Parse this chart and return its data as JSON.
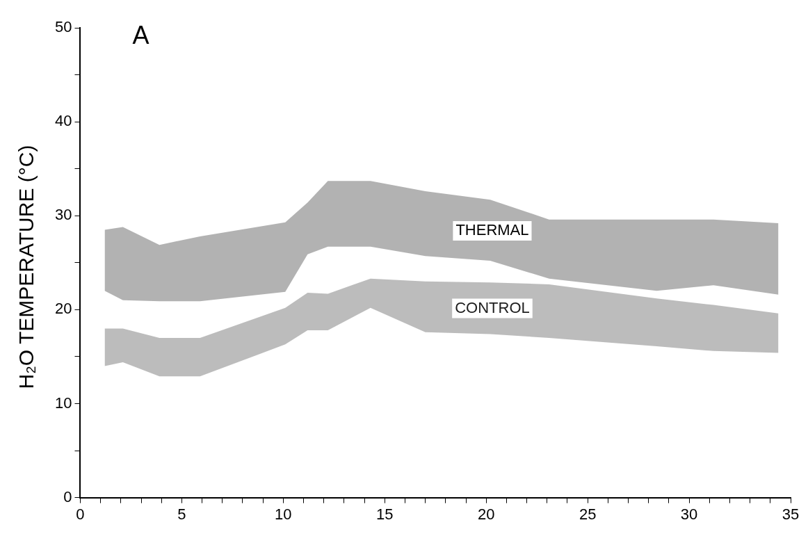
{
  "chart_data": {
    "type": "line",
    "title": "A",
    "ylabel": "H₂O TEMPERATURE (°C)",
    "x": [
      1.2,
      2.1,
      3.9,
      5.9,
      10.1,
      11.2,
      12.2,
      14.3,
      17,
      20.2,
      23.1,
      28.4,
      31.2,
      34.4
    ],
    "series": [
      {
        "name": "THERMAL",
        "color": "#000000",
        "values": [
          null,
          null,
          null,
          null,
          null,
          null,
          null,
          null,
          null,
          null,
          null,
          null,
          null,
          null
        ],
        "upper": [
          28.5,
          28.8,
          26.9,
          27.8,
          29.3,
          31.4,
          33.7,
          33.7,
          32.6,
          31.7,
          29.6,
          29.6,
          29.6,
          29.2
        ],
        "lower": [
          22,
          21,
          20.9,
          20.9,
          21.9,
          25.9,
          26.7,
          26.7,
          25.7,
          25.2,
          23.3,
          22,
          22.6,
          21.6
        ]
      },
      {
        "name": "CONTROL",
        "color": "#202020",
        "values": [
          null,
          null,
          null,
          null,
          null,
          null,
          null,
          null,
          null,
          null,
          null,
          null,
          null,
          null
        ],
        "upper": [
          18,
          18,
          17,
          17,
          20.2,
          21.8,
          21.7,
          23.3,
          23,
          22.9,
          22.7,
          21.2,
          20.5,
          19.6
        ],
        "lower": [
          14,
          14.4,
          12.9,
          12.9,
          16.3,
          17.8,
          17.8,
          20.2,
          17.6,
          17.4,
          17,
          16.1,
          15.6,
          15.4
        ]
      }
    ],
    "xlim": [
      0,
      35
    ],
    "ylim": [
      0,
      50
    ],
    "xticks": [
      0,
      {
        "value": 1,
        "label": null
      },
      {
        "value": 2,
        "label": null
      },
      {
        "value": 3,
        "label": null
      },
      {
        "value": 4,
        "label": null
      },
      5,
      {
        "value": 6,
        "label": null
      },
      {
        "value": 7,
        "label": null
      },
      {
        "value": 8,
        "label": null
      },
      {
        "value": 9,
        "label": null
      },
      10,
      {
        "value": 11,
        "label": null
      },
      {
        "value": 12,
        "label": null
      },
      {
        "value": 13,
        "label": null
      },
      {
        "value": 14,
        "label": null
      },
      15,
      {
        "value": 16,
        "label": null
      },
      {
        "value": 17,
        "label": null
      },
      {
        "value": 18,
        "label": null
      },
      {
        "value": 19,
        "label": null
      },
      20,
      {
        "value": 21,
        "label": null
      },
      {
        "value": 22,
        "label": null
      },
      {
        "value": 23,
        "label": null
      },
      {
        "value": 24,
        "label": null
      },
      25,
      {
        "value": 26,
        "label": null
      },
      {
        "value": 27,
        "label": null
      },
      {
        "value": 28,
        "label": null
      },
      {
        "value": 29,
        "label": null
      },
      30,
      {
        "value": 31,
        "label": null
      },
      {
        "value": 32,
        "label": null
      },
      {
        "value": 33,
        "label": null
      },
      {
        "value": 34,
        "label": null
      },
      35
    ],
    "yticks": [
      0,
      {
        "value": 5,
        "label": null
      },
      10,
      {
        "value": 15,
        "label": null
      },
      20,
      {
        "value": 25,
        "label": null
      },
      30,
      {
        "value": 35,
        "label": null
      },
      40,
      {
        "value": 45,
        "label": null
      },
      50
    ],
    "grid": false,
    "legend": false
  }
}
